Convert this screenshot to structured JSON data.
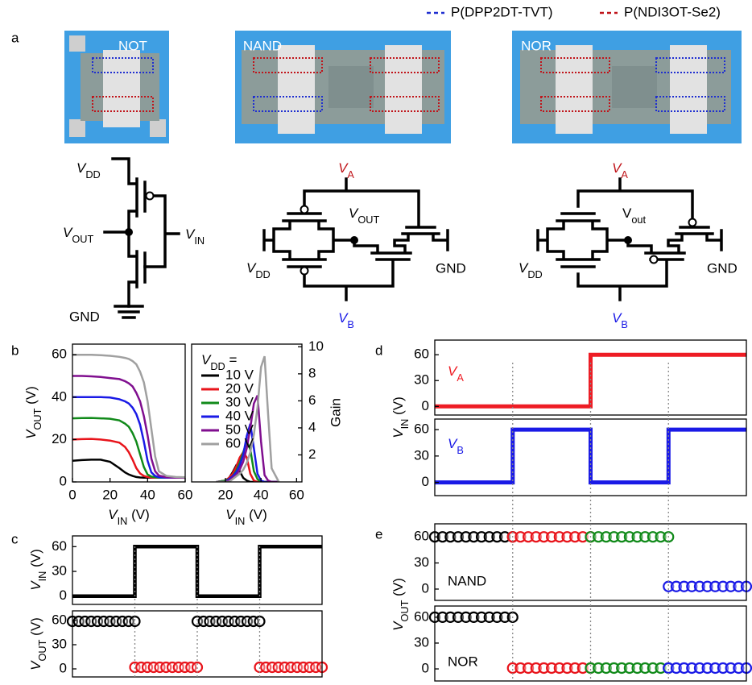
{
  "panel_labels": [
    "a",
    "b",
    "c",
    "d",
    "e"
  ],
  "legend": [
    {
      "name": "P(DPP2DT-TVT)",
      "color": "#1f2fd0"
    },
    {
      "name": "P(NDI3OT-Se2)",
      "color": "#c0141a"
    }
  ],
  "photos": [
    "NOT",
    "NAND",
    "NOR"
  ],
  "schematics": {
    "not": {
      "vdd": [
        "V",
        "DD"
      ],
      "vout": [
        "V",
        "OUT"
      ],
      "vin": [
        "V",
        "IN"
      ],
      "gnd": "GND"
    },
    "nand": {
      "va": [
        "V",
        "A"
      ],
      "vout": [
        "V",
        "OUT"
      ],
      "vdd": [
        "V",
        "DD"
      ],
      "gnd": "GND",
      "vb": [
        "V",
        "B"
      ]
    },
    "nor": {
      "va": [
        "V",
        "A"
      ],
      "vout": [
        "V",
        "out"
      ],
      "vdd": [
        "V",
        "DD"
      ],
      "gnd": "GND",
      "vb": [
        "V",
        "B"
      ]
    }
  },
  "chart_data": [
    {
      "type": "line",
      "xlabel": [
        "V",
        "IN",
        " (V)"
      ],
      "ylabel": [
        "V",
        "OUT",
        " (V)"
      ],
      "x": [
        0,
        5,
        10,
        15,
        20,
        25,
        28,
        30,
        32,
        34,
        36,
        38,
        40,
        42,
        44,
        46,
        50,
        55,
        60
      ],
      "series": [
        {
          "color": "#000000",
          "values": [
            10,
            10.3,
            10.5,
            10.5,
            9.5,
            6.5,
            4.5,
            3.5,
            2.8,
            2.3,
            2.1,
            2,
            2,
            2,
            2,
            2,
            2,
            2,
            2
          ]
        },
        {
          "color": "#e8141b",
          "values": [
            20,
            20.2,
            20.3,
            20,
            19.5,
            18.5,
            16.5,
            14,
            10.5,
            6.5,
            4,
            2.8,
            2.3,
            2.1,
            2,
            2,
            2,
            2,
            2
          ]
        },
        {
          "color": "#118a1a",
          "values": [
            30,
            30.1,
            30.2,
            30,
            29.8,
            29,
            27.5,
            26,
            23,
            19,
            13,
            7,
            3.5,
            2.5,
            2.2,
            2,
            2,
            2,
            2
          ]
        },
        {
          "color": "#1a1ae6",
          "values": [
            40,
            40,
            40,
            40,
            39.8,
            39,
            38,
            37,
            35,
            32,
            27,
            19,
            10,
            4.5,
            2.8,
            2.2,
            2,
            2,
            2
          ]
        },
        {
          "color": "#800f8f",
          "values": [
            50,
            50,
            49.8,
            49.5,
            49,
            48.5,
            47.5,
            46.5,
            45,
            42,
            38,
            31,
            22,
            11,
            5,
            3,
            2.2,
            2,
            2
          ]
        },
        {
          "color": "#a0a0a0",
          "values": [
            60,
            60,
            60,
            59.8,
            59.5,
            59,
            58.5,
            58,
            57,
            55.5,
            52,
            47,
            38,
            25,
            12,
            5,
            2.8,
            2.3,
            2.2
          ]
        }
      ],
      "xlim": [
        0,
        60
      ],
      "ylim": [
        0,
        65
      ],
      "xticks": [
        0,
        20,
        40,
        60
      ],
      "yticks": [
        0,
        20,
        40,
        60
      ]
    },
    {
      "type": "line",
      "xlabel": [
        "V",
        "IN",
        " (V)"
      ],
      "ylabel": "Gain",
      "legend_title": [
        "V",
        "DD",
        " ="
      ],
      "x": [
        15,
        20,
        22,
        24,
        26,
        28,
        30,
        32,
        34,
        36,
        38,
        40,
        42,
        44,
        46,
        50
      ],
      "series": [
        {
          "name": "10 V",
          "color": "#000000",
          "values": [
            0,
            0.1,
            0.3,
            0.7,
            1.2,
            0.8,
            0.3,
            0.1,
            0,
            0,
            0,
            0,
            0,
            0,
            0,
            0
          ]
        },
        {
          "name": "20 V",
          "color": "#e8141b",
          "values": [
            0,
            0.1,
            0.3,
            0.6,
            1.1,
            1.8,
            2.2,
            1.8,
            0.6,
            0.1,
            0,
            0,
            0,
            0,
            0,
            0
          ]
        },
        {
          "name": "30 V",
          "color": "#118a1a",
          "values": [
            0,
            0.1,
            0.2,
            0.4,
            0.8,
            1.4,
            2.2,
            3,
            2.4,
            0.8,
            0.2,
            0,
            0,
            0,
            0,
            0
          ]
        },
        {
          "name": "40 V",
          "color": "#1a1ae6",
          "values": [
            0,
            0,
            0.2,
            0.4,
            0.7,
            1.2,
            2,
            3.4,
            4.3,
            2.5,
            0.6,
            0.1,
            0,
            0,
            0,
            0
          ]
        },
        {
          "name": "50 V",
          "color": "#800f8f",
          "values": [
            0,
            0,
            0.1,
            0.3,
            0.5,
            0.9,
            1.5,
            2.5,
            4,
            5.8,
            6.4,
            3,
            0.5,
            0.1,
            0,
            0
          ]
        },
        {
          "name": "60 V",
          "color": "#a0a0a0",
          "values": [
            0,
            0,
            0,
            0.2,
            0.4,
            0.6,
            0.9,
            1.4,
            2.2,
            3.5,
            5.5,
            8.5,
            9.3,
            5,
            1,
            0
          ]
        }
      ],
      "xlim": [
        1,
        63
      ],
      "ylim": [
        0,
        10.2
      ],
      "xticks": [
        20,
        40,
        60
      ],
      "yticks": [
        2,
        4,
        6,
        8,
        10
      ],
      "y_axis_side": "right"
    },
    {
      "type": "line",
      "ylabel": [
        "V",
        "IN",
        " (V)"
      ],
      "color": "#000000",
      "x": [
        0,
        1,
        1,
        2,
        2,
        3,
        3,
        4
      ],
      "values": [
        0,
        0,
        60,
        60,
        0,
        0,
        60,
        60
      ],
      "xlim": [
        0,
        4
      ],
      "ylim": [
        -10,
        73
      ],
      "yticks": [
        0,
        30,
        60
      ]
    },
    {
      "type": "scatter",
      "ylabel": [
        "V",
        "OUT",
        " (V)"
      ],
      "series": [
        {
          "color": "#000000",
          "x": [
            0,
            0.1,
            0.2,
            0.3,
            0.4,
            0.5,
            0.6,
            0.7,
            0.8,
            0.9,
            1,
            2,
            2.1,
            2.2,
            2.3,
            2.4,
            2.5,
            2.6,
            2.7,
            2.8,
            2.9,
            3
          ],
          "values": [
            59,
            59,
            59,
            59,
            59,
            59,
            59,
            59,
            59,
            59,
            59,
            59,
            59,
            59,
            59,
            59,
            59,
            59,
            59,
            59,
            59,
            59
          ]
        },
        {
          "color": "#e8141b",
          "x": [
            1,
            1.1,
            1.2,
            1.3,
            1.4,
            1.5,
            1.6,
            1.7,
            1.8,
            1.9,
            2,
            3,
            3.1,
            3.2,
            3.3,
            3.4,
            3.5,
            3.6,
            3.7,
            3.8,
            3.9,
            4
          ],
          "values": [
            2,
            2,
            2,
            2,
            2,
            2,
            2,
            2,
            2,
            2,
            2,
            2,
            2,
            2,
            2,
            2,
            2,
            2,
            2,
            2,
            2,
            2
          ]
        }
      ],
      "xlim": [
        0,
        4
      ],
      "ylim": [
        -10,
        72
      ],
      "yticks": [
        0,
        30,
        60
      ]
    },
    {
      "type": "line",
      "annotation": [
        "V",
        "A"
      ],
      "ylabel": [
        "V",
        "IN",
        " (V)"
      ],
      "color": "#ee1c24",
      "x": [
        0,
        2,
        2,
        4
      ],
      "values": [
        0,
        0,
        60,
        60
      ],
      "xlim": [
        0,
        4
      ],
      "ylim": [
        -10,
        77
      ],
      "yticks": [
        0,
        30,
        60
      ]
    },
    {
      "type": "line",
      "annotation": [
        "V",
        "B"
      ],
      "color": "#1a1ae6",
      "x": [
        0,
        1,
        1,
        2,
        2,
        3,
        3,
        4
      ],
      "values": [
        0,
        0,
        60,
        60,
        0,
        0,
        60,
        60
      ],
      "xlim": [
        0,
        4
      ],
      "ylim": [
        -15,
        72
      ],
      "yticks": [
        0,
        30,
        60
      ]
    },
    {
      "type": "scatter",
      "annotation": "NAND",
      "ylabel": [
        "V",
        "OUT",
        " (V)"
      ],
      "series": [
        {
          "color": "#000000",
          "x": [
            0,
            0.1,
            0.2,
            0.3,
            0.4,
            0.5,
            0.6,
            0.7,
            0.8,
            0.9,
            1
          ],
          "values": [
            60,
            60,
            60,
            60,
            60,
            60,
            60,
            60,
            60,
            60,
            60
          ]
        },
        {
          "color": "#e8141b",
          "x": [
            1,
            1.1,
            1.2,
            1.3,
            1.4,
            1.5,
            1.6,
            1.7,
            1.8,
            1.9,
            2
          ],
          "values": [
            60,
            60,
            60,
            60,
            60,
            60,
            60,
            60,
            60,
            60,
            60
          ]
        },
        {
          "color": "#118a1a",
          "x": [
            2,
            2.1,
            2.2,
            2.3,
            2.4,
            2.5,
            2.6,
            2.7,
            2.8,
            2.9,
            3
          ],
          "values": [
            60,
            60,
            60,
            60,
            60,
            60,
            60,
            60,
            60,
            60,
            60
          ]
        },
        {
          "color": "#1a1ae6",
          "x": [
            3,
            3.1,
            3.2,
            3.3,
            3.4,
            3.5,
            3.6,
            3.7,
            3.8,
            3.9,
            4
          ],
          "values": [
            3,
            3,
            3,
            3,
            3,
            3,
            3,
            3,
            3,
            3,
            3
          ]
        }
      ],
      "xlim": [
        0,
        4
      ],
      "ylim": [
        -13,
        75
      ],
      "yticks": [
        0,
        30,
        60
      ]
    },
    {
      "type": "scatter",
      "annotation": "NOR",
      "series": [
        {
          "color": "#000000",
          "x": [
            0,
            0.1,
            0.2,
            0.3,
            0.4,
            0.5,
            0.6,
            0.7,
            0.8,
            0.9,
            1
          ],
          "values": [
            60,
            60,
            60,
            60,
            60,
            60,
            60,
            60,
            60,
            60,
            60
          ]
        },
        {
          "color": "#e8141b",
          "x": [
            1,
            1.1,
            1.2,
            1.3,
            1.4,
            1.5,
            1.6,
            1.7,
            1.8,
            1.9,
            2
          ],
          "values": [
            1,
            1,
            1,
            1,
            1,
            1,
            1,
            1,
            1,
            1,
            1
          ]
        },
        {
          "color": "#118a1a",
          "x": [
            2,
            2.1,
            2.2,
            2.3,
            2.4,
            2.5,
            2.6,
            2.7,
            2.8,
            2.9,
            3
          ],
          "values": [
            1,
            1,
            1,
            1,
            1,
            1,
            1,
            1,
            1,
            1,
            1
          ]
        },
        {
          "color": "#1a1ae6",
          "x": [
            3,
            3.1,
            3.2,
            3.3,
            3.4,
            3.5,
            3.6,
            3.7,
            3.8,
            3.9,
            4
          ],
          "values": [
            1,
            1,
            1,
            1,
            1,
            1,
            1,
            1,
            1,
            1,
            1
          ]
        }
      ],
      "xlim": [
        0,
        4
      ],
      "ylim": [
        -14,
        73
      ],
      "yticks": [
        0,
        30,
        60
      ]
    }
  ]
}
